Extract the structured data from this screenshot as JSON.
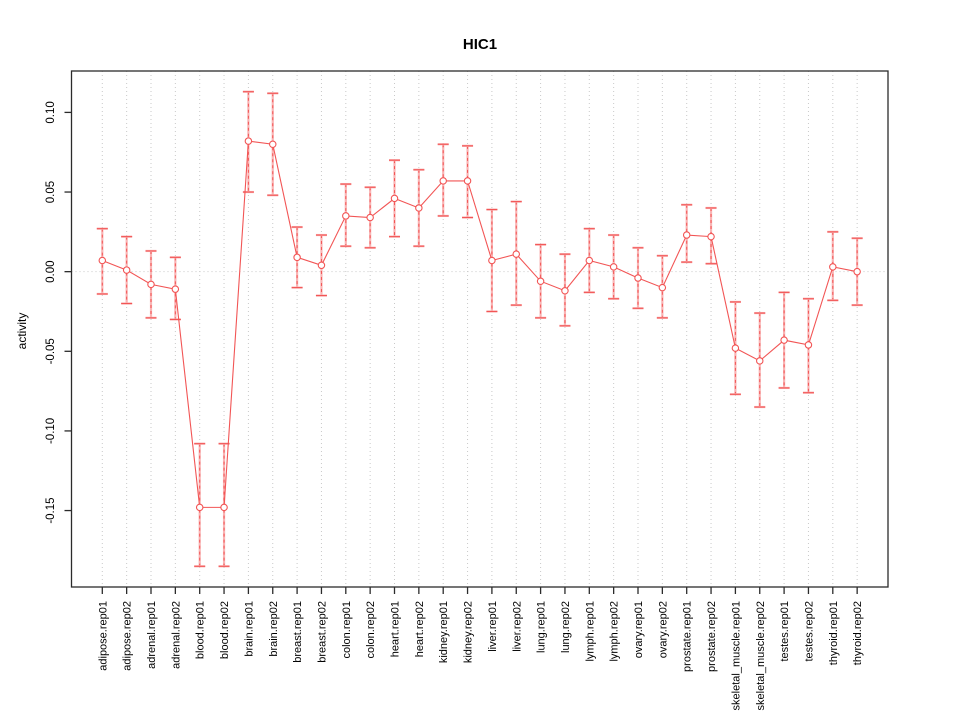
{
  "title": "HIC1",
  "chart_data": {
    "type": "line",
    "title": "HIC1",
    "xlabel": "",
    "ylabel": "activity",
    "legend": null,
    "grid": "vertical-dotted-per-category-plus-zero-line",
    "marker": "open-circle",
    "error_bars": true,
    "ylim": [
      -0.198,
      0.126
    ],
    "yticks": [
      0.1,
      0.05,
      0.0,
      -0.05,
      -0.1,
      -0.15
    ],
    "ytick_labels": [
      "0.10",
      "0.05",
      "0.00",
      "-0.05",
      "-0.10",
      "-0.15"
    ],
    "categories": [
      "adipose.rep01",
      "adipose.rep02",
      "adrenal.rep01",
      "adrenal.rep02",
      "blood.rep01",
      "blood.rep02",
      "brain.rep01",
      "brain.rep02",
      "breast.rep01",
      "breast.rep02",
      "colon.rep01",
      "colon.rep02",
      "heart.rep01",
      "heart.rep02",
      "kidney.rep01",
      "kidney.rep02",
      "liver.rep01",
      "liver.rep02",
      "lung.rep01",
      "lung.rep02",
      "lymph.rep01",
      "lymph.rep02",
      "ovary.rep01",
      "ovary.rep02",
      "prostate.rep01",
      "prostate.rep02",
      "skeletal_muscle.rep01",
      "skeletal_muscle.rep02",
      "testes.rep01",
      "testes.rep02",
      "thyroid.rep01",
      "thyroid.rep02"
    ],
    "series": [
      {
        "name": "activity",
        "values": [
          0.007,
          0.001,
          -0.008,
          -0.011,
          -0.148,
          -0.148,
          0.082,
          0.08,
          0.009,
          0.004,
          0.035,
          0.034,
          0.046,
          0.04,
          0.057,
          0.057,
          0.007,
          0.011,
          -0.006,
          -0.012,
          0.007,
          0.003,
          -0.004,
          -0.01,
          0.023,
          0.022,
          -0.048,
          -0.056,
          -0.043,
          -0.046,
          0.003,
          0.0
        ],
        "lower": [
          -0.014,
          -0.02,
          -0.029,
          -0.03,
          -0.185,
          -0.185,
          0.05,
          0.048,
          -0.01,
          -0.015,
          0.016,
          0.015,
          0.022,
          0.016,
          0.035,
          0.034,
          -0.025,
          -0.021,
          -0.029,
          -0.034,
          -0.013,
          -0.017,
          -0.023,
          -0.029,
          0.006,
          0.005,
          -0.077,
          -0.085,
          -0.073,
          -0.076,
          -0.018,
          -0.021
        ],
        "upper": [
          0.027,
          0.022,
          0.013,
          0.009,
          -0.108,
          -0.108,
          0.113,
          0.112,
          0.028,
          0.023,
          0.055,
          0.053,
          0.07,
          0.064,
          0.08,
          0.079,
          0.039,
          0.044,
          0.017,
          0.011,
          0.027,
          0.023,
          0.015,
          0.01,
          0.042,
          0.04,
          -0.019,
          -0.026,
          -0.013,
          -0.017,
          0.025,
          0.021
        ]
      }
    ],
    "colors": {
      "line": "#f25555",
      "line_soft": "#f9b4b4",
      "marker_fill": "#ffffff",
      "grid": "#c9c9c9",
      "axis": "#2b2b2b",
      "text": "#000000"
    }
  }
}
